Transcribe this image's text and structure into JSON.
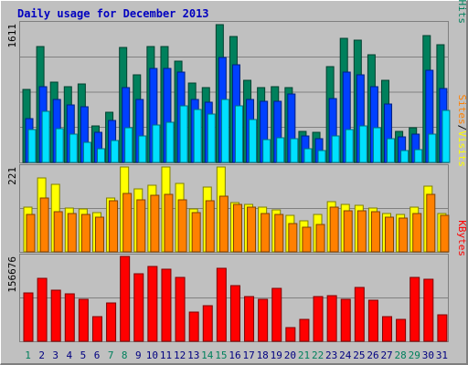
{
  "title": "Daily usage for December 2013",
  "colors": {
    "frame": "#c0c0c0",
    "pages": "#00e0ff",
    "files": "#0040ff",
    "hits": "#00805c",
    "sites": "#ff8000",
    "visits": "#ffff00",
    "kbytes": "#ff0000",
    "weekend_day": "#00805c",
    "weekday_day": "#000080"
  },
  "chart_data": [
    {
      "type": "bar",
      "panel": "hits-files-pages",
      "max_label": "1611",
      "ylim": [
        0,
        1611
      ],
      "categories": [
        "1",
        "2",
        "3",
        "4",
        "5",
        "6",
        "7",
        "8",
        "9",
        "10",
        "11",
        "12",
        "13",
        "14",
        "15",
        "16",
        "17",
        "18",
        "19",
        "20",
        "21",
        "22",
        "23",
        "24",
        "25",
        "26",
        "27",
        "28",
        "29",
        "30",
        "31"
      ],
      "legend": [
        "Pages",
        "/",
        "Files",
        "/",
        "Hits"
      ],
      "series": [
        {
          "name": "Hits",
          "values": [
            840,
            1330,
            920,
            870,
            900,
            420,
            580,
            1320,
            1000,
            1330,
            1330,
            1160,
            910,
            860,
            1580,
            1440,
            940,
            860,
            870,
            860,
            360,
            340,
            1100,
            1420,
            1400,
            1230,
            940,
            360,
            400,
            1450,
            1350
          ]
        },
        {
          "name": "Files",
          "values": [
            500,
            870,
            720,
            660,
            640,
            350,
            480,
            860,
            720,
            1080,
            1080,
            1040,
            720,
            690,
            1200,
            1120,
            720,
            700,
            700,
            780,
            300,
            270,
            730,
            1040,
            1000,
            870,
            670,
            290,
            320,
            1060,
            850
          ]
        },
        {
          "name": "Pages",
          "values": [
            380,
            590,
            390,
            320,
            230,
            160,
            250,
            400,
            300,
            430,
            460,
            650,
            610,
            550,
            720,
            650,
            490,
            260,
            280,
            270,
            160,
            140,
            300,
            380,
            420,
            400,
            270,
            140,
            150,
            320,
            600
          ]
        }
      ]
    },
    {
      "type": "bar",
      "panel": "visits-sites",
      "max_label": "221",
      "ylim": [
        0,
        221
      ],
      "categories": [
        "1",
        "2",
        "3",
        "4",
        "5",
        "6",
        "7",
        "8",
        "9",
        "10",
        "11",
        "12",
        "13",
        "14",
        "15",
        "16",
        "17",
        "18",
        "19",
        "20",
        "21",
        "22",
        "23",
        "24",
        "25",
        "26",
        "27",
        "28",
        "29",
        "30",
        "31"
      ],
      "legend": [
        "Sites",
        "/",
        "Visits"
      ],
      "series": [
        {
          "name": "Visits",
          "values": [
            115,
            188,
            172,
            112,
            110,
            100,
            138,
            221,
            160,
            170,
            218,
            175,
            110,
            165,
            223,
            125,
            121,
            113,
            107,
            93,
            78,
            96,
            128,
            121,
            118,
            111,
            98,
            95,
            115,
            168,
            98
          ]
        },
        {
          "name": "Sites",
          "values": [
            95,
            138,
            103,
            98,
            96,
            88,
            130,
            150,
            132,
            145,
            147,
            132,
            100,
            130,
            142,
            120,
            115,
            98,
            96,
            73,
            63,
            70,
            113,
            104,
            104,
            102,
            88,
            85,
            97,
            146,
            94
          ]
        }
      ]
    },
    {
      "type": "bar",
      "panel": "kbytes",
      "max_label": "156676",
      "ylim": [
        0,
        156676
      ],
      "categories": [
        "1",
        "2",
        "3",
        "4",
        "5",
        "6",
        "7",
        "8",
        "9",
        "10",
        "11",
        "12",
        "13",
        "14",
        "15",
        "16",
        "17",
        "18",
        "19",
        "20",
        "21",
        "22",
        "23",
        "24",
        "25",
        "26",
        "27",
        "28",
        "29",
        "30",
        "31"
      ],
      "legend": [
        "KBytes"
      ],
      "series": [
        {
          "name": "KBytes",
          "values": [
            88000,
            114000,
            92000,
            86000,
            76000,
            44000,
            70000,
            156676,
            122000,
            135000,
            130000,
            116000,
            52000,
            64000,
            132000,
            100000,
            80000,
            76000,
            96000,
            24000,
            40000,
            80000,
            82000,
            76000,
            98000,
            74000,
            44000,
            40000,
            116000,
            112000,
            48000
          ]
        }
      ]
    }
  ],
  "day_labels": [
    "1",
    "2",
    "3",
    "4",
    "5",
    "6",
    "7",
    "8",
    "9",
    "10",
    "11",
    "12",
    "13",
    "14",
    "15",
    "16",
    "17",
    "18",
    "19",
    "20",
    "21",
    "22",
    "23",
    "24",
    "25",
    "26",
    "27",
    "28",
    "29",
    "30",
    "31"
  ],
  "weekend_days": [
    1,
    7,
    8,
    14,
    15,
    21,
    22,
    28,
    29
  ]
}
